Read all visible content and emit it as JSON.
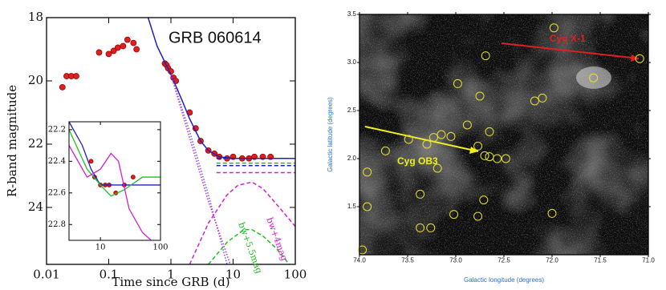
{
  "chart_data": [
    {
      "type": "scatter",
      "x_scale": "log",
      "y_inverted": true,
      "xlabel": "Time since GRB (d)",
      "ylabel": "R-band magnitude",
      "annotations": [
        "GRB 060614",
        "bw+4mag",
        "bw+5.5mag"
      ],
      "xlim": [
        0.01,
        100
      ],
      "ylim": [
        18,
        25.8
      ],
      "xticks": [
        0.01,
        0.1,
        1,
        10,
        100
      ],
      "yticks": [
        18,
        20,
        22,
        24
      ],
      "series": [
        {
          "color": "#e02020",
          "x": [
            0.018,
            0.021,
            0.025,
            0.03,
            0.07,
            0.1,
            0.12,
            0.14,
            0.17,
            0.2,
            0.25,
            0.28,
            0.8,
            0.85,
            0.9,
            1.0,
            1.1,
            1.2,
            2,
            2.5,
            3,
            4,
            5,
            6,
            8,
            10,
            14,
            18,
            22,
            30,
            40
          ],
          "values": [
            20.2,
            19.85,
            19.85,
            19.85,
            19.1,
            19.15,
            19.05,
            18.95,
            18.9,
            18.7,
            18.8,
            19.0,
            19.45,
            19.5,
            19.6,
            19.7,
            19.9,
            20.0,
            21.0,
            21.5,
            21.9,
            22.2,
            22.3,
            22.4,
            22.45,
            22.4,
            22.45,
            22.45,
            22.4,
            22.4,
            22.4
          ]
        },
        {
          "color": "#2020c0",
          "line": true,
          "x": [
            0.43,
            0.6,
            1,
            1.5,
            2,
            3,
            4,
            6,
            10,
            20,
            50,
            100
          ],
          "values": [
            18.0,
            18.9,
            19.8,
            20.6,
            21.2,
            21.9,
            22.2,
            22.4,
            22.45,
            22.45,
            22.45,
            22.45
          ]
        },
        {
          "color": "#6060ff",
          "line": true,
          "style": "dotted",
          "x": [
            1,
            2,
            4,
            8
          ],
          "values": [
            19.8,
            21.6,
            23.6,
            25.8
          ]
        },
        {
          "color": "#d020d0",
          "line": true,
          "style": "dotted",
          "x": [
            1,
            2,
            4,
            9
          ],
          "values": [
            19.8,
            21.8,
            23.8,
            25.8
          ]
        },
        {
          "color": "#d020d0",
          "line": true,
          "style": "dashed",
          "x": [
            2,
            4,
            8,
            12,
            20,
            30,
            50,
            100
          ],
          "values": [
            25.8,
            24.5,
            23.6,
            23.3,
            23.2,
            23.4,
            23.9,
            24.6
          ]
        },
        {
          "color": "#20c020",
          "line": true,
          "style": "dashed",
          "x": [
            4,
            8,
            15,
            20,
            30,
            50,
            80
          ],
          "values": [
            25.8,
            25.1,
            24.7,
            24.7,
            24.9,
            25.3,
            25.8
          ]
        },
        {
          "color": "#2020c0",
          "line": true,
          "style": "dashed",
          "x": [
            5.4,
            100
          ],
          "values": [
            22.45,
            22.45
          ]
        },
        {
          "color": "#20c020",
          "line": true,
          "style": "dashed",
          "x": [
            5.4,
            100
          ],
          "values": [
            22.6,
            22.6
          ]
        },
        {
          "color": "#2020c0",
          "line": true,
          "style": "dashed",
          "x": [
            5.4,
            100
          ],
          "values": [
            22.68,
            22.68
          ]
        },
        {
          "color": "#d020d0",
          "line": true,
          "style": "dashed",
          "x": [
            5.4,
            100
          ],
          "values": [
            22.9,
            22.9
          ]
        }
      ]
    },
    {
      "type": "scatter",
      "x_scale": "log",
      "y_inverted": true,
      "xlim": [
        3,
        100
      ],
      "ylim": [
        22.15,
        22.9
      ],
      "xticks": [
        10,
        100
      ],
      "yticks": [
        22.2,
        22.4,
        22.6,
        22.8
      ],
      "series": [
        {
          "color": "#e02020",
          "x": [
            7,
            8,
            10,
            12,
            14,
            18,
            25,
            35
          ],
          "values": [
            22.4,
            22.5,
            22.55,
            22.55,
            22.55,
            22.6,
            22.55,
            22.5
          ]
        },
        {
          "color": "#2020c0",
          "line": true,
          "x": [
            3,
            5,
            7,
            10,
            20,
            50,
            100
          ],
          "values": [
            22.15,
            22.3,
            22.45,
            22.55,
            22.55,
            22.55,
            22.55
          ]
        },
        {
          "color": "#20c020",
          "line": true,
          "x": [
            3,
            6,
            10,
            15,
            25,
            50,
            100
          ],
          "values": [
            22.2,
            22.45,
            22.55,
            22.62,
            22.58,
            22.5,
            22.5
          ]
        },
        {
          "color": "#d020d0",
          "line": true,
          "x": [
            3,
            6,
            10,
            15,
            20,
            30,
            50,
            70
          ],
          "values": [
            22.3,
            22.5,
            22.45,
            22.35,
            22.4,
            22.7,
            22.85,
            22.9
          ]
        }
      ]
    },
    {
      "type": "scatter",
      "xlabel": "Galactic longitude (degrees)",
      "ylabel": "Galactic latitude (degrees)",
      "annotations": [
        "Cyg X-1",
        "Cyg OB3"
      ],
      "xlim": [
        74.0,
        71.0
      ],
      "ylim": [
        1.0,
        3.5
      ],
      "xticks": [
        {
          "value": 74,
          "label": "74.0"
        },
        73.5,
        {
          "value": 73,
          "label": "73.0"
        },
        72.5,
        {
          "value": 72,
          "label": "72.0"
        },
        71.5,
        {
          "value": 71,
          "label": "71.0"
        }
      ],
      "yticks": [
        1.5,
        {
          "value": 2,
          "label": "2.0"
        },
        2.5,
        {
          "value": 3,
          "label": "3.0"
        },
        3.5
      ],
      "series": [
        {
          "color": "#e8e030",
          "x": [
            73.92,
            73.73,
            73.49,
            73.3,
            73.23,
            73.15,
            73.05,
            72.88,
            72.77,
            72.7,
            72.65,
            72.57,
            72.48,
            73.19,
            73.37,
            73.02,
            72.77,
            72.71,
            73.37,
            73.26,
            73.92,
            73.97,
            72.0,
            72.65,
            72.75,
            72.98,
            72.18,
            72.1,
            72.69,
            71.98,
            71.57,
            71.09
          ],
          "values": [
            1.86,
            2.08,
            2.2,
            2.15,
            2.22,
            2.25,
            2.23,
            2.35,
            2.13,
            2.03,
            2.02,
            2.0,
            2.0,
            1.9,
            1.63,
            1.42,
            1.4,
            1.57,
            1.28,
            1.28,
            1.5,
            1.05,
            1.43,
            2.28,
            2.65,
            2.78,
            2.6,
            2.63,
            3.07,
            3.36,
            2.84,
            3.04
          ]
        }
      ]
    }
  ]
}
